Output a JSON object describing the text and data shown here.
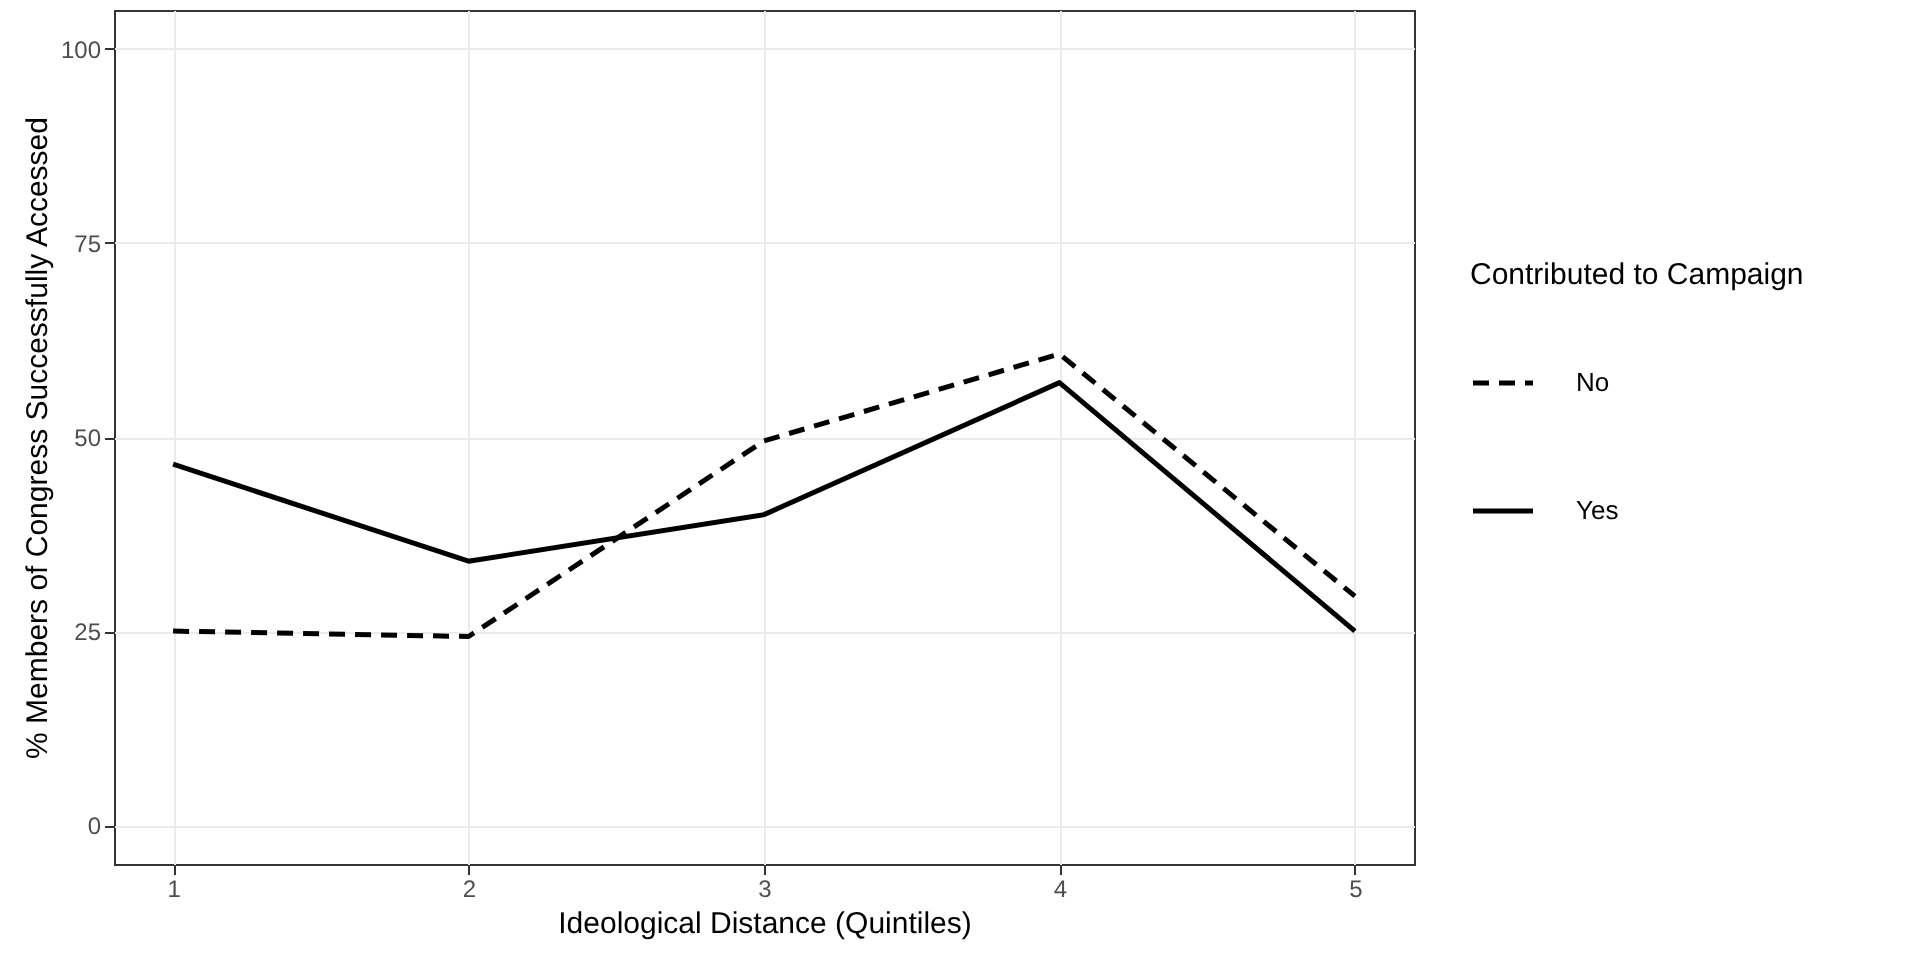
{
  "chart_data": {
    "type": "line",
    "xlabel": "Ideological Distance (Quintiles)",
    "ylabel": "% Members of Congress Successfully Accessed",
    "legend_title": "Contributed to Campaign",
    "x": [
      1,
      2,
      3,
      4,
      5
    ],
    "series": [
      {
        "name": "No",
        "color": "#000000",
        "line_style": "dashed",
        "values": [
          25,
          24.3,
          49.5,
          60.7,
          29.5
        ]
      },
      {
        "name": "Yes",
        "color": "#000000",
        "line_style": "solid",
        "values": [
          46.5,
          34,
          40,
          57,
          25
        ]
      }
    ],
    "xlim": [
      0.8,
      5.2
    ],
    "xticks": [
      1,
      2,
      3,
      4,
      5
    ],
    "ylim": [
      -5,
      105
    ],
    "yticks": [
      0,
      25,
      50,
      75,
      100
    ],
    "grid": true,
    "legend": "right"
  }
}
